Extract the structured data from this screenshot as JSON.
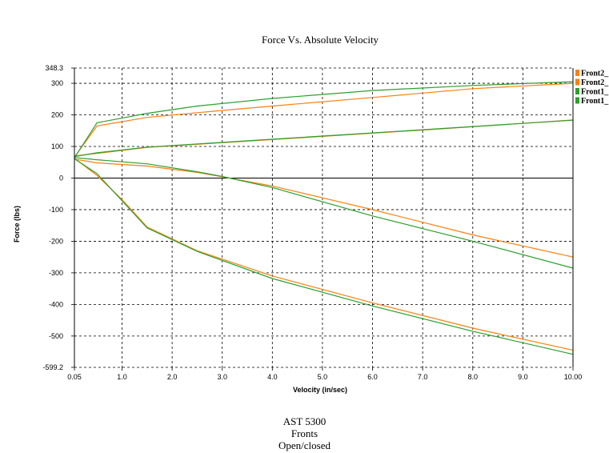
{
  "chart_data": {
    "type": "line",
    "title": "Force Vs. Absolute Velocity",
    "xlabel": "Velocity (in/sec)",
    "ylabel": "Force (lbs)",
    "xlim": [
      0.05,
      10.0
    ],
    "ylim": [
      -599.2,
      348.3
    ],
    "x_ticks": [
      {
        "value": 0.05,
        "label": "0.05"
      },
      {
        "value": 1.0,
        "label": "1.0"
      },
      {
        "value": 2.0,
        "label": "2.0"
      },
      {
        "value": 3.0,
        "label": "3.0"
      },
      {
        "value": 4.0,
        "label": "4.0"
      },
      {
        "value": 5.0,
        "label": "5.0"
      },
      {
        "value": 6.0,
        "label": "6.0"
      },
      {
        "value": 7.0,
        "label": "7.0"
      },
      {
        "value": 8.0,
        "label": "8.0"
      },
      {
        "value": 9.0,
        "label": "9.0"
      },
      {
        "value": 10.0,
        "label": "10.00"
      }
    ],
    "y_ticks": [
      {
        "value": 348.3,
        "label": "348.3"
      },
      {
        "value": 300,
        "label": "300"
      },
      {
        "value": 200,
        "label": "200"
      },
      {
        "value": 100,
        "label": "100"
      },
      {
        "value": 0,
        "label": "0"
      },
      {
        "value": -100,
        "label": "-100"
      },
      {
        "value": -200,
        "label": "-200"
      },
      {
        "value": -300,
        "label": "-300"
      },
      {
        "value": -400,
        "label": "-400"
      },
      {
        "value": -500,
        "label": "-500"
      },
      {
        "value": -599.2,
        "label": "-599.2"
      }
    ],
    "grid": true,
    "legend_position": "top-right",
    "series": [
      {
        "name": "Front2_",
        "color": "#ff7f0e",
        "points": [
          [
            0.05,
            66
          ],
          [
            0.5,
            165
          ],
          [
            1.5,
            192
          ],
          [
            2.5,
            207
          ],
          [
            4,
            228
          ],
          [
            6,
            255
          ],
          [
            8,
            283
          ],
          [
            10,
            300
          ]
        ]
      },
      {
        "name": "Front2_",
        "color": "#ff7f0e",
        "points": [
          [
            0.05,
            70
          ],
          [
            0.5,
            78
          ],
          [
            1.5,
            97
          ],
          [
            3,
            112
          ],
          [
            5,
            132
          ],
          [
            7,
            152
          ],
          [
            10,
            184
          ]
        ]
      },
      {
        "name": "Front2_",
        "color": "#ff7f0e",
        "points": [
          [
            0.05,
            60
          ],
          [
            0.5,
            48
          ],
          [
            1.5,
            38
          ],
          [
            2.5,
            18
          ],
          [
            3,
            4
          ],
          [
            4,
            -25
          ],
          [
            6,
            -100
          ],
          [
            8,
            -180
          ],
          [
            10,
            -250
          ]
        ]
      },
      {
        "name": "Front2_",
        "color": "#ff7f0e",
        "points": [
          [
            0.05,
            63
          ],
          [
            0.5,
            8
          ],
          [
            1,
            -68
          ],
          [
            1.5,
            -155
          ],
          [
            2.5,
            -230
          ],
          [
            4,
            -310
          ],
          [
            6,
            -395
          ],
          [
            8,
            -475
          ],
          [
            10,
            -545
          ]
        ]
      },
      {
        "name": "Front1_",
        "color": "#2ca02c",
        "points": [
          [
            0.05,
            64
          ],
          [
            0.5,
            175
          ],
          [
            1.5,
            205
          ],
          [
            2.5,
            228
          ],
          [
            4,
            252
          ],
          [
            6,
            277
          ],
          [
            8,
            293
          ],
          [
            10,
            305
          ]
        ]
      },
      {
        "name": "Front1_",
        "color": "#2ca02c",
        "points": [
          [
            0.05,
            68
          ],
          [
            0.5,
            80
          ],
          [
            1.5,
            98
          ],
          [
            3,
            113
          ],
          [
            5,
            133
          ],
          [
            7,
            153
          ],
          [
            10,
            183
          ]
        ]
      },
      {
        "name": "Front1_",
        "color": "#2ca02c",
        "points": [
          [
            0.05,
            65
          ],
          [
            0.5,
            58
          ],
          [
            1.5,
            45
          ],
          [
            2.5,
            20
          ],
          [
            3,
            5
          ],
          [
            4,
            -30
          ],
          [
            6,
            -120
          ],
          [
            8,
            -200
          ],
          [
            10,
            -285
          ]
        ]
      },
      {
        "name": "Front1_",
        "color": "#2ca02c",
        "points": [
          [
            0.05,
            61
          ],
          [
            0.5,
            14
          ],
          [
            1,
            -72
          ],
          [
            1.5,
            -158
          ],
          [
            2.5,
            -232
          ],
          [
            4,
            -318
          ],
          [
            6,
            -405
          ],
          [
            8,
            -485
          ],
          [
            10,
            -558
          ]
        ]
      }
    ],
    "legend": [
      {
        "label": "Front2_",
        "color": "#ff7f0e"
      },
      {
        "label": "Front2_",
        "color": "#ff7f0e"
      },
      {
        "label": "Front1_",
        "color": "#2ca02c"
      },
      {
        "label": "Front1_",
        "color": "#2ca02c"
      }
    ]
  },
  "caption": {
    "line1": "AST 5300",
    "line2": "Fronts",
    "line3": "Open/closed"
  }
}
